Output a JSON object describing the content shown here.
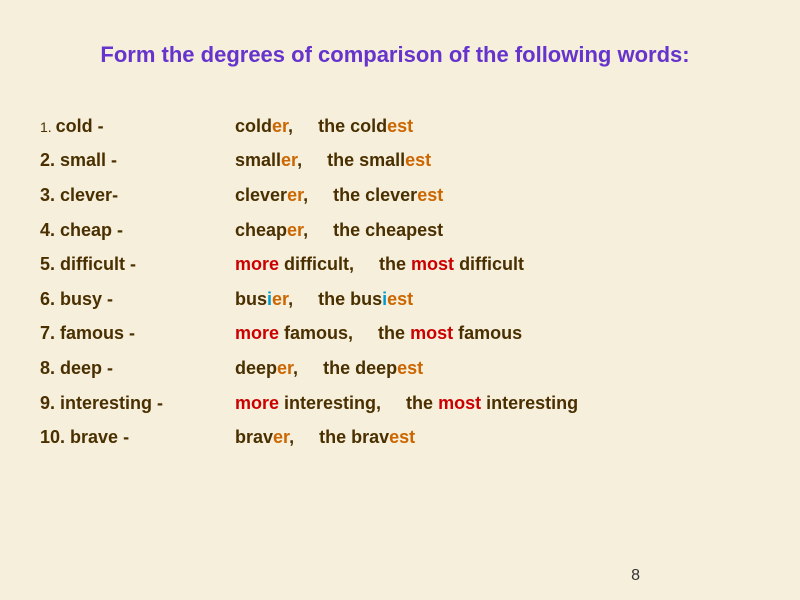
{
  "title": "Form the degrees of comparison of the following words:",
  "rows": [
    {
      "num": "1.",
      "word": "cold -",
      "comparative": [
        {
          "t": "cold",
          "c": "base"
        },
        {
          "t": "er",
          "c": "er"
        },
        {
          "t": ",",
          "c": "base"
        }
      ],
      "superlative": [
        {
          "t": "the cold",
          "c": "base"
        },
        {
          "t": "est",
          "c": "est"
        }
      ],
      "numClass": "num1"
    },
    {
      "num": "2.",
      "word": "small -",
      "comparative": [
        {
          "t": "small",
          "c": "base"
        },
        {
          "t": "er",
          "c": "er"
        },
        {
          "t": ",",
          "c": "base"
        }
      ],
      "superlative": [
        {
          "t": "the small",
          "c": "base"
        },
        {
          "t": "est",
          "c": "est"
        }
      ]
    },
    {
      "num": "3.",
      "word": "clever-",
      "comparative": [
        {
          "t": "clever",
          "c": "base"
        },
        {
          "t": "er",
          "c": "er"
        },
        {
          "t": ",",
          "c": "base"
        }
      ],
      "superlative": [
        {
          "t": "the clever",
          "c": "base"
        },
        {
          "t": "est",
          "c": "est"
        }
      ]
    },
    {
      "num": "4.",
      "word": "cheap -",
      "comparative": [
        {
          "t": "cheap",
          "c": "base"
        },
        {
          "t": "er",
          "c": "er"
        },
        {
          "t": ",",
          "c": "base"
        }
      ],
      "superlative": [
        {
          "t": "the cheapest",
          "c": "base"
        }
      ]
    },
    {
      "num": "5.",
      "word": "difficult -",
      "comparative": [
        {
          "t": "more",
          "c": "more"
        },
        {
          "t": " difficult,",
          "c": "base"
        }
      ],
      "superlative": [
        {
          "t": "the ",
          "c": "base"
        },
        {
          "t": "most",
          "c": "most"
        },
        {
          "t": " difficult",
          "c": "base"
        }
      ]
    },
    {
      "num": "6.",
      "word": "busy -",
      "comparative": [
        {
          "t": "bus",
          "c": "base"
        },
        {
          "t": "i",
          "c": "i"
        },
        {
          "t": "er",
          "c": "er"
        },
        {
          "t": ",",
          "c": "base"
        }
      ],
      "superlative": [
        {
          "t": "the bus",
          "c": "base"
        },
        {
          "t": "i",
          "c": "i"
        },
        {
          "t": "est",
          "c": "est"
        }
      ]
    },
    {
      "num": "7.",
      "word": "famous -",
      "comparative": [
        {
          "t": "more",
          "c": "more"
        },
        {
          "t": " famous,",
          "c": "base"
        }
      ],
      "superlative": [
        {
          "t": "the ",
          "c": "base"
        },
        {
          "t": "most",
          "c": "most"
        },
        {
          "t": " famous",
          "c": "base"
        }
      ]
    },
    {
      "num": "8.",
      "word": "deep -",
      "comparative": [
        {
          "t": "deep",
          "c": "base"
        },
        {
          "t": "er",
          "c": "er"
        },
        {
          "t": ",",
          "c": "base"
        }
      ],
      "superlative": [
        {
          "t": "the deep",
          "c": "base"
        },
        {
          "t": "est",
          "c": "est"
        }
      ]
    },
    {
      "num": "9.",
      "word": "interesting -",
      "comparative": [
        {
          "t": "more",
          "c": "more"
        },
        {
          "t": " interesting,",
          "c": "base"
        }
      ],
      "superlative": [
        {
          "t": "the ",
          "c": "base"
        },
        {
          "t": "most",
          "c": "most"
        },
        {
          "t": " interesting",
          "c": "base"
        }
      ]
    },
    {
      "num": "10.",
      "word": "brave -",
      "comparative": [
        {
          "t": "brav",
          "c": "base"
        },
        {
          "t": "er",
          "c": "er"
        },
        {
          "t": ",",
          "c": "base"
        }
      ],
      "superlative": [
        {
          "t": "the brav",
          "c": "base"
        },
        {
          "t": "est",
          "c": "est"
        }
      ]
    }
  ],
  "pageNumber": "8",
  "compSupGap": "    "
}
